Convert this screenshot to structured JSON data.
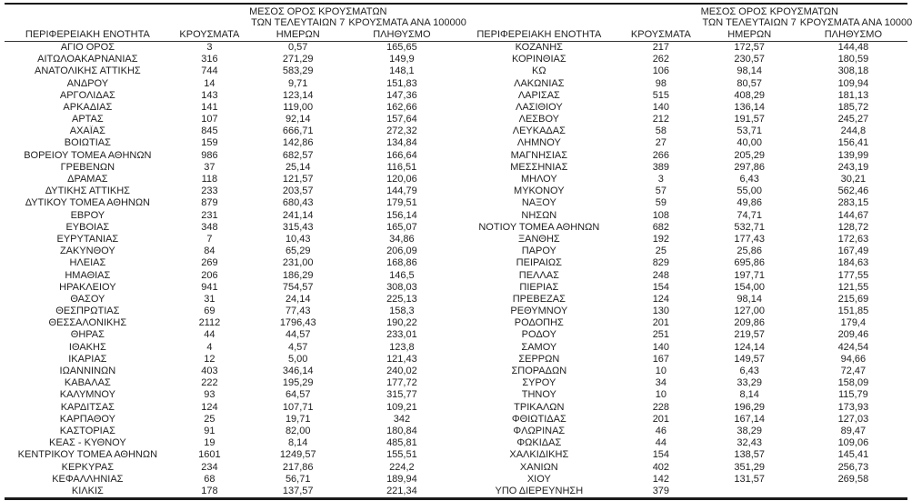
{
  "table": {
    "headers": {
      "region": "ΠΕΡΙΦΕΡΕΙΑΚΗ ΕΝΟΤΗΤΑ",
      "cases": "ΚΡΟΥΣΜΑΤΑ",
      "avg7_lines": [
        "ΜΕΣΟΣ ΟΡΟΣ ΚΡΟΥΣΜΑΤΩΝ",
        "ΤΩΝ ΤΕΛΕΥΤΑΙΩΝ 7",
        "ΗΜΕΡΩΝ"
      ],
      "per100k_lines": [
        "ΚΡΟΥΣΜΑΤΑ ΑΝΑ 100000",
        "ΠΛΗΘΥΣΜΟ"
      ]
    },
    "left_rows": [
      [
        "ΑΓΙΟ ΟΡΟΣ",
        "3",
        "0,57",
        "165,65"
      ],
      [
        "ΑΙΤΩΛΟΑΚΑΡΝΑΝΙΑΣ",
        "316",
        "271,29",
        "149,9"
      ],
      [
        "ΑΝΑΤΟΛΙΚΗΣ ΑΤΤΙΚΗΣ",
        "744",
        "583,29",
        "148,1"
      ],
      [
        "ΑΝΔΡΟΥ",
        "14",
        "9,71",
        "151,83"
      ],
      [
        "ΑΡΓΟΛΙΔΑΣ",
        "143",
        "123,14",
        "147,36"
      ],
      [
        "ΑΡΚΑΔΙΑΣ",
        "141",
        "119,00",
        "162,66"
      ],
      [
        "ΑΡΤΑΣ",
        "107",
        "92,14",
        "157,64"
      ],
      [
        "ΑΧΑΪΑΣ",
        "845",
        "666,71",
        "272,32"
      ],
      [
        "ΒΟΙΩΤΙΑΣ",
        "159",
        "142,86",
        "134,84"
      ],
      [
        "ΒΟΡΕΙΟΥ ΤΟΜΕΑ ΑΘΗΝΩΝ",
        "986",
        "682,57",
        "166,64"
      ],
      [
        "ΓΡΕΒΕΝΩΝ",
        "37",
        "25,14",
        "116,51"
      ],
      [
        "ΔΡΑΜΑΣ",
        "118",
        "121,57",
        "120,06"
      ],
      [
        "ΔΥΤΙΚΗΣ ΑΤΤΙΚΗΣ",
        "233",
        "203,57",
        "144,79"
      ],
      [
        "ΔΥΤΙΚΟΥ ΤΟΜΕΑ ΑΘΗΝΩΝ",
        "879",
        "680,43",
        "179,51"
      ],
      [
        "ΕΒΡΟΥ",
        "231",
        "241,14",
        "156,14"
      ],
      [
        "ΕΥΒΟΙΑΣ",
        "348",
        "315,43",
        "165,07"
      ],
      [
        "ΕΥΡΥΤΑΝΙΑΣ",
        "7",
        "10,43",
        "34,86"
      ],
      [
        "ΖΑΚΥΝΘΟΥ",
        "84",
        "65,29",
        "206,09"
      ],
      [
        "ΗΛΕΙΑΣ",
        "269",
        "231,00",
        "168,86"
      ],
      [
        "ΗΜΑΘΙΑΣ",
        "206",
        "186,29",
        "146,5"
      ],
      [
        "ΗΡΑΚΛΕΙΟΥ",
        "941",
        "754,57",
        "308,03"
      ],
      [
        "ΘΑΣΟΥ",
        "31",
        "24,14",
        "225,13"
      ],
      [
        "ΘΕΣΠΡΩΤΙΑΣ",
        "69",
        "77,43",
        "158,3"
      ],
      [
        "ΘΕΣΣΑΛΟΝΙΚΗΣ",
        "2112",
        "1796,43",
        "190,22"
      ],
      [
        "ΘΗΡΑΣ",
        "44",
        "44,57",
        "233,01"
      ],
      [
        "ΙΘΑΚΗΣ",
        "4",
        "4,57",
        "123,8"
      ],
      [
        "ΙΚΑΡΙΑΣ",
        "12",
        "5,00",
        "121,43"
      ],
      [
        "ΙΩΑΝΝΙΝΩΝ",
        "403",
        "346,14",
        "240,02"
      ],
      [
        "ΚΑΒΑΛΑΣ",
        "222",
        "195,29",
        "177,72"
      ],
      [
        "ΚΑΛΥΜΝΟΥ",
        "93",
        "64,57",
        "315,77"
      ],
      [
        "ΚΑΡΔΙΤΣΑΣ",
        "124",
        "107,71",
        "109,21"
      ],
      [
        "ΚΑΡΠΑΘΟΥ",
        "25",
        "19,71",
        "342"
      ],
      [
        "ΚΑΣΤΟΡΙΑΣ",
        "91",
        "82,00",
        "180,84"
      ],
      [
        "ΚΕΑΣ - ΚΥΘΝΟΥ",
        "19",
        "8,14",
        "485,81"
      ],
      [
        "ΚΕΝΤΡΙΚΟΥ ΤΟΜΕΑ ΑΘΗΝΩΝ",
        "1601",
        "1249,57",
        "155,51"
      ],
      [
        "ΚΕΡΚΥΡΑΣ",
        "234",
        "217,86",
        "224,2"
      ],
      [
        "ΚΕΦΑΛΛΗΝΙΑΣ",
        "68",
        "56,71",
        "189,94"
      ],
      [
        "ΚΙΛΚΙΣ",
        "178",
        "137,57",
        "221,34"
      ]
    ],
    "right_rows": [
      [
        "ΚΟΖΑΝΗΣ",
        "217",
        "172,57",
        "144,48"
      ],
      [
        "ΚΟΡΙΝΘΙΑΣ",
        "262",
        "230,57",
        "180,59"
      ],
      [
        "ΚΩ",
        "106",
        "98,14",
        "308,18"
      ],
      [
        "ΛΑΚΩΝΙΑΣ",
        "98",
        "80,57",
        "109,94"
      ],
      [
        "ΛΑΡΙΣΑΣ",
        "515",
        "408,29",
        "181,13"
      ],
      [
        "ΛΑΣΙΘΙΟΥ",
        "140",
        "136,14",
        "185,72"
      ],
      [
        "ΛΕΣΒΟΥ",
        "212",
        "191,57",
        "245,27"
      ],
      [
        "ΛΕΥΚΑΔΑΣ",
        "58",
        "53,71",
        "244,8"
      ],
      [
        "ΛΗΜΝΟΥ",
        "27",
        "40,00",
        "156,41"
      ],
      [
        "ΜΑΓΝΗΣΙΑΣ",
        "266",
        "205,29",
        "139,99"
      ],
      [
        "ΜΕΣΣΗΝΙΑΣ",
        "389",
        "297,86",
        "243,19"
      ],
      [
        "ΜΗΛΟΥ",
        "3",
        "6,43",
        "30,21"
      ],
      [
        "ΜΥΚΟΝΟΥ",
        "57",
        "55,00",
        "562,46"
      ],
      [
        "ΝΑΞΟΥ",
        "59",
        "49,86",
        "283,15"
      ],
      [
        "ΝΗΣΩΝ",
        "108",
        "74,71",
        "144,67"
      ],
      [
        "ΝΟΤΙΟΥ ΤΟΜΕΑ ΑΘΗΝΩΝ",
        "682",
        "532,71",
        "128,72"
      ],
      [
        "ΞΑΝΘΗΣ",
        "192",
        "177,43",
        "172,63"
      ],
      [
        "ΠΑΡΟΥ",
        "25",
        "25,86",
        "167,49"
      ],
      [
        "ΠΕΙΡΑΙΩΣ",
        "829",
        "695,86",
        "184,63"
      ],
      [
        "ΠΕΛΛΑΣ",
        "248",
        "197,71",
        "177,55"
      ],
      [
        "ΠΙΕΡΙΑΣ",
        "154",
        "154,00",
        "121,55"
      ],
      [
        "ΠΡΕΒΕΖΑΣ",
        "124",
        "98,14",
        "215,69"
      ],
      [
        "ΡΕΘΥΜΝΟΥ",
        "130",
        "127,00",
        "151,85"
      ],
      [
        "ΡΟΔΟΠΗΣ",
        "201",
        "209,86",
        "179,4"
      ],
      [
        "ΡΟΔΟΥ",
        "251",
        "219,57",
        "209,46"
      ],
      [
        "ΣΑΜΟΥ",
        "140",
        "124,14",
        "424,54"
      ],
      [
        "ΣΕΡΡΩΝ",
        "167",
        "149,57",
        "94,66"
      ],
      [
        "ΣΠΟΡΑΔΩΝ",
        "10",
        "6,43",
        "72,47"
      ],
      [
        "ΣΥΡΟΥ",
        "34",
        "33,29",
        "158,09"
      ],
      [
        "ΤΗΝΟΥ",
        "10",
        "8,14",
        "115,79"
      ],
      [
        "ΤΡΙΚΑΛΩΝ",
        "228",
        "196,29",
        "173,93"
      ],
      [
        "ΦΘΙΩΤΙΔΑΣ",
        "201",
        "167,14",
        "127,03"
      ],
      [
        "ΦΛΩΡΙΝΑΣ",
        "46",
        "38,29",
        "89,47"
      ],
      [
        "ΦΩΚΙΔΑΣ",
        "44",
        "32,43",
        "109,06"
      ],
      [
        "ΧΑΛΚΙΔΙΚΗΣ",
        "154",
        "138,57",
        "145,41"
      ],
      [
        "ΧΑΝΙΩΝ",
        "402",
        "351,29",
        "256,73"
      ],
      [
        "ΧΙΟΥ",
        "142",
        "131,57",
        "269,58"
      ],
      [
        "ΥΠΟ ΔΙΕΡΕΥΝΗΣΗ",
        "379",
        "",
        ""
      ]
    ]
  }
}
